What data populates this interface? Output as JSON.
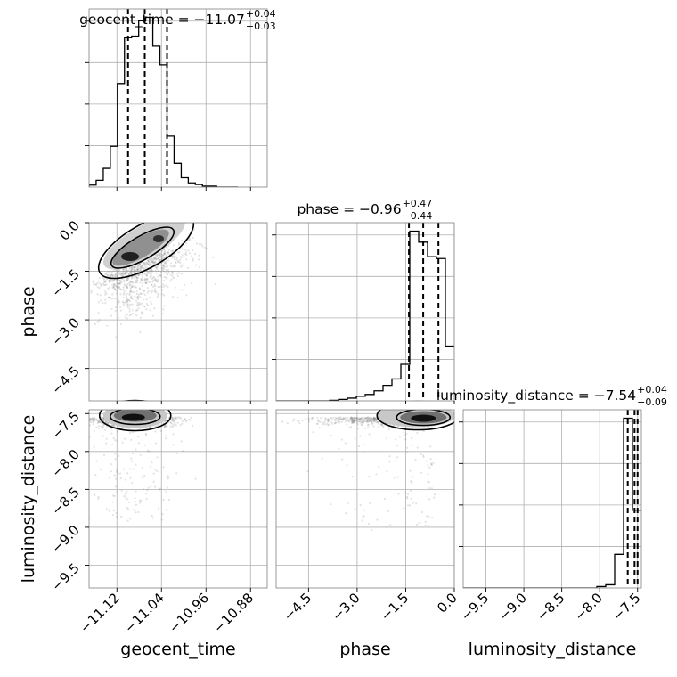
{
  "chart_data": {
    "type": "corner",
    "parameters": [
      {
        "name": "geocent_time",
        "axis_label": "geocent_time",
        "range": [
          -11.17,
          -10.85
        ],
        "ticks": [
          -11.12,
          -11.04,
          -10.96,
          -10.88
        ],
        "tick_labels": [
          "−11.12",
          "−11.04",
          "−10.96",
          "−10.88"
        ],
        "title": {
          "prefix": "geocent_time = ",
          "median": "−11.07",
          "plus": "+0.04",
          "minus": "−0.03"
        },
        "quantiles": [
          -11.1,
          -11.07,
          -11.03
        ],
        "hist_bins": [
          -11.17,
          -11.1573,
          -11.1445,
          -11.1318,
          -11.1191,
          -11.1064,
          -11.0936,
          -11.0809,
          -11.0682,
          -11.0555,
          -11.0427,
          -11.03,
          -11.0173,
          -11.0045,
          -10.9918,
          -10.9791,
          -10.9664,
          -10.9536,
          -10.9409,
          -10.9282,
          -10.9155,
          -10.9027
        ],
        "hist_counts": [
          0.012,
          0.04,
          0.11,
          0.24,
          0.61,
          0.88,
          0.89,
          0.98,
          1.0,
          0.83,
          0.72,
          0.3,
          0.14,
          0.055,
          0.025,
          0.015,
          0.006,
          0.006,
          0.0,
          0.0,
          0.0
        ]
      },
      {
        "name": "phase",
        "axis_label": "phase",
        "range": [
          -5.5,
          0.0
        ],
        "ticks": [
          -4.5,
          -3.0,
          -1.5,
          0.0
        ],
        "tick_labels": [
          "−4.5",
          "−3.0",
          "−1.5",
          "0.0"
        ],
        "title": {
          "prefix": "phase = ",
          "median": "−0.96",
          "plus": "+0.47",
          "minus": "−0.44"
        },
        "quantiles": [
          -1.4,
          -0.96,
          -0.49
        ],
        "hist_bins": [
          -5.5,
          -5.225,
          -4.95,
          -4.675,
          -4.4,
          -4.125,
          -3.85,
          -3.575,
          -3.3,
          -3.025,
          -2.75,
          -2.475,
          -2.2,
          -1.925,
          -1.65,
          -1.375,
          -1.1,
          -0.825,
          -0.55,
          -0.275,
          0.0
        ],
        "hist_counts": [
          0.0,
          0.0,
          0.0,
          0.0,
          0.0,
          0.0,
          0.003,
          0.008,
          0.015,
          0.025,
          0.035,
          0.055,
          0.085,
          0.12,
          0.2,
          0.93,
          0.87,
          0.79,
          0.78,
          0.3
        ]
      },
      {
        "name": "luminosity_distance",
        "axis_label": "luminosity_distance",
        "range": [
          -9.8,
          -7.45
        ],
        "ticks": [
          -9.5,
          -9.0,
          -8.5,
          -8.0,
          -7.5
        ],
        "tick_labels": [
          "−9.5",
          "−9.0",
          "−8.5",
          "−8.0",
          "−7.5"
        ],
        "title": {
          "prefix": "luminosity_distance = ",
          "median": "−7.54",
          "plus": "+0.04",
          "minus": "−0.09"
        },
        "quantiles": [
          -7.63,
          -7.54,
          -7.5
        ],
        "hist_bins": [
          -9.8,
          -9.6825,
          -9.565,
          -9.4475,
          -9.33,
          -9.2125,
          -9.095,
          -8.9775,
          -8.86,
          -8.7425,
          -8.625,
          -8.5075,
          -8.39,
          -8.2725,
          -8.155,
          -8.0375,
          -7.92,
          -7.8025,
          -7.685,
          -7.5675,
          -7.45
        ],
        "hist_counts": [
          0.0,
          0.0,
          0.0,
          0.0,
          0.0,
          0.0,
          0.0,
          0.0,
          0.0,
          0.0,
          0.0,
          0.0,
          0.0,
          0.0,
          0.0,
          0.008,
          0.018,
          0.19,
          0.96,
          0.44
        ]
      }
    ],
    "pairs": [
      {
        "x": "geocent_time",
        "y": "phase",
        "mode_x": -11.09,
        "mode_y": -1.1
      },
      {
        "x": "geocent_time",
        "y": "luminosity_distance",
        "mode_x": -11.1,
        "mode_y": -7.55
      },
      {
        "x": "phase",
        "y": "luminosity_distance",
        "mode_x": -0.9,
        "mode_y": -7.55
      }
    ],
    "grid": true,
    "colors": {
      "samples": "#808080",
      "lines": "#000000",
      "grid": "#b0b0b0",
      "frame": "#808080"
    }
  }
}
